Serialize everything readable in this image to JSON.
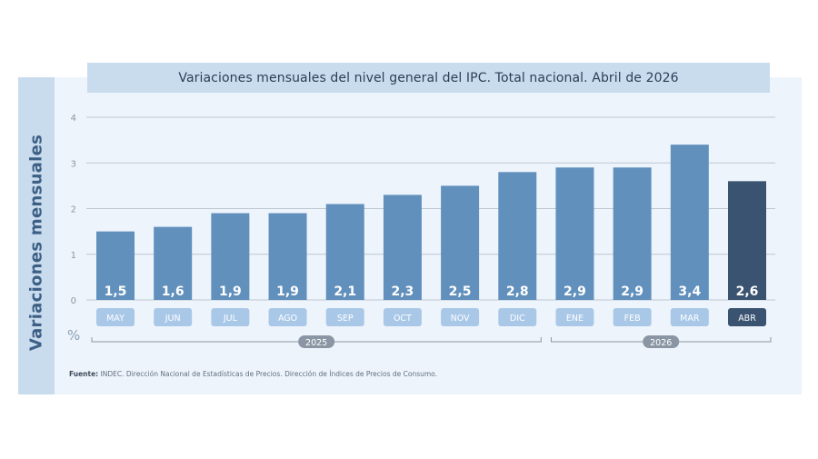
{
  "chart_data": {
    "type": "bar",
    "title": "Variaciones mensuales del nivel general del IPC. Total nacional. Abril de 2026",
    "ylabel": "Variaciones mensuales",
    "unit": "%",
    "ylim": [
      0,
      4
    ],
    "yticks": [
      "0",
      "1",
      "2",
      "3",
      "4"
    ],
    "categories": [
      "MAY",
      "JUN",
      "JUL",
      "AGO",
      "SEP",
      "OCT",
      "NOV",
      "DIC",
      "ENE",
      "FEB",
      "MAR",
      "ABR"
    ],
    "values": [
      1.5,
      1.6,
      1.9,
      1.9,
      2.1,
      2.3,
      2.5,
      2.8,
      2.9,
      2.9,
      3.4,
      2.6
    ],
    "value_labels": [
      "1,5",
      "1,6",
      "1,9",
      "1,9",
      "2,1",
      "2,3",
      "2,5",
      "2,8",
      "2,9",
      "2,9",
      "3,4",
      "2,6"
    ],
    "year_groups": [
      {
        "label": "2025",
        "from": 0,
        "to": 7
      },
      {
        "label": "2026",
        "from": 8,
        "to": 11
      }
    ],
    "highlight_index": 11,
    "grid": true,
    "colors": {
      "bar": "#6190bd",
      "bar_highlight": "#3a5371",
      "month_pill": "#a9c8e8",
      "month_pill_highlight": "#3a5371",
      "year_pill": "#8a96a4"
    }
  },
  "source": {
    "label": "Fuente:",
    "text": " INDEC. Dirección Nacional de Estadísticas de Precios. Dirección de Índices de Precios de Consumo."
  }
}
